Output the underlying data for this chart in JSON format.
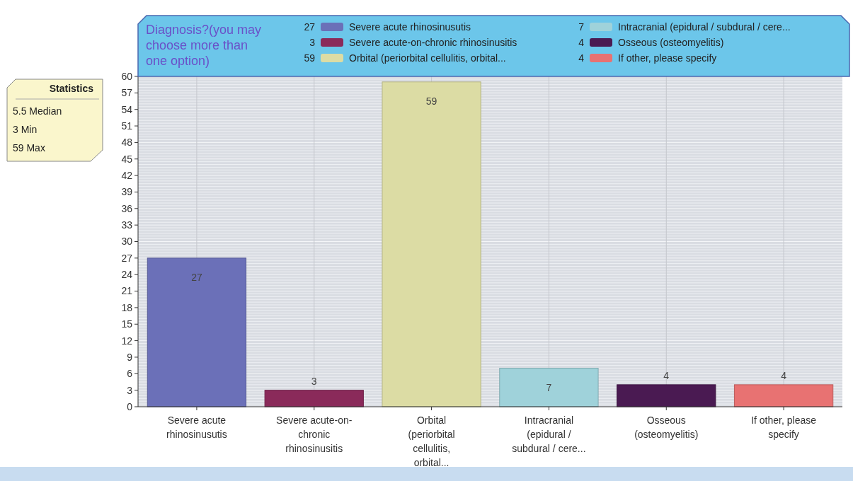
{
  "chart_data": {
    "type": "bar",
    "title": "Diagnosis?(you may choose more than one option)",
    "categories": [
      "Severe acute rhinosinusutis",
      "Severe acute-on-chronic rhinosinusitis",
      "Orbital (periorbital cellulitis, orbital...",
      "Intracranial (epidural / subdural / cere...",
      "Osseous (osteomyelitis)",
      "If other, please specify"
    ],
    "series": [
      {
        "name": "Severe acute rhinosinusutis",
        "color": "#6b70b8",
        "values": [
          27,
          null,
          null,
          null,
          null,
          null
        ]
      },
      {
        "name": "Severe acute-on-chronic rhinosinusitis",
        "color": "#8a2a5a",
        "values": [
          null,
          3,
          null,
          null,
          null,
          null
        ]
      },
      {
        "name": "Orbital (periorbital cellulitis, orbital...",
        "color": "#dcdca4",
        "values": [
          null,
          null,
          59,
          null,
          null,
          null
        ]
      },
      {
        "name": "Intracranial (epidural / subdural / cere...",
        "color": "#9fd2da",
        "values": [
          null,
          null,
          null,
          7,
          null,
          null
        ]
      },
      {
        "name": "Osseous (osteomyelitis)",
        "color": "#4a1a52",
        "values": [
          null,
          null,
          null,
          null,
          4,
          null
        ]
      },
      {
        "name": "If other, please specify",
        "color": "#e87272",
        "values": [
          null,
          null,
          null,
          null,
          null,
          4
        ]
      }
    ],
    "stacked": true,
    "ylim": [
      0,
      60
    ],
    "yticks": [
      0,
      3,
      6,
      9,
      12,
      15,
      18,
      21,
      24,
      27,
      30,
      33,
      36,
      39,
      42,
      45,
      48,
      51,
      54,
      57,
      60
    ],
    "grid": true,
    "legend": "top",
    "data_labels": true,
    "annotations": [
      "Statistics",
      "5.5 Median",
      "3 Min",
      "59 Max",
      "27",
      "3",
      "59",
      "7",
      "4",
      "4"
    ]
  }
}
